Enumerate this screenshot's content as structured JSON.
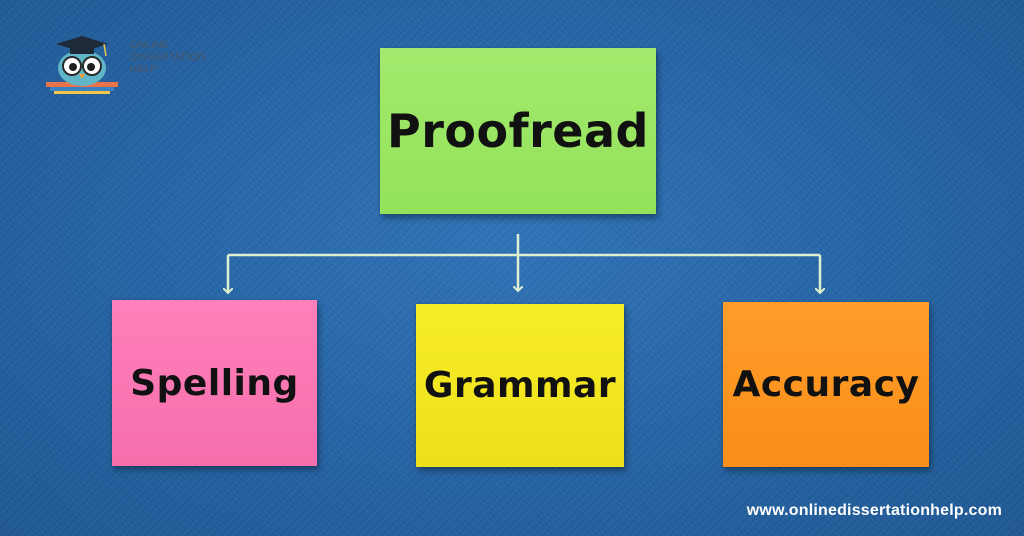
{
  "logo": {
    "text": "ONLINE\nDISSERTATION\nHELP",
    "icon": "owl-graduate-icon"
  },
  "diagram": {
    "root": {
      "label": "Proofread",
      "color": "#93e25a"
    },
    "children": [
      {
        "label": "Spelling",
        "color": "#f56fac"
      },
      {
        "label": "Grammar",
        "color": "#ece01a"
      },
      {
        "label": "Accuracy",
        "color": "#f98e18"
      }
    ],
    "connector_color": "#dff0cf"
  },
  "footer": {
    "website": "www.onlinedissertationhelp.com"
  },
  "colors": {
    "background": "#2766a8"
  }
}
